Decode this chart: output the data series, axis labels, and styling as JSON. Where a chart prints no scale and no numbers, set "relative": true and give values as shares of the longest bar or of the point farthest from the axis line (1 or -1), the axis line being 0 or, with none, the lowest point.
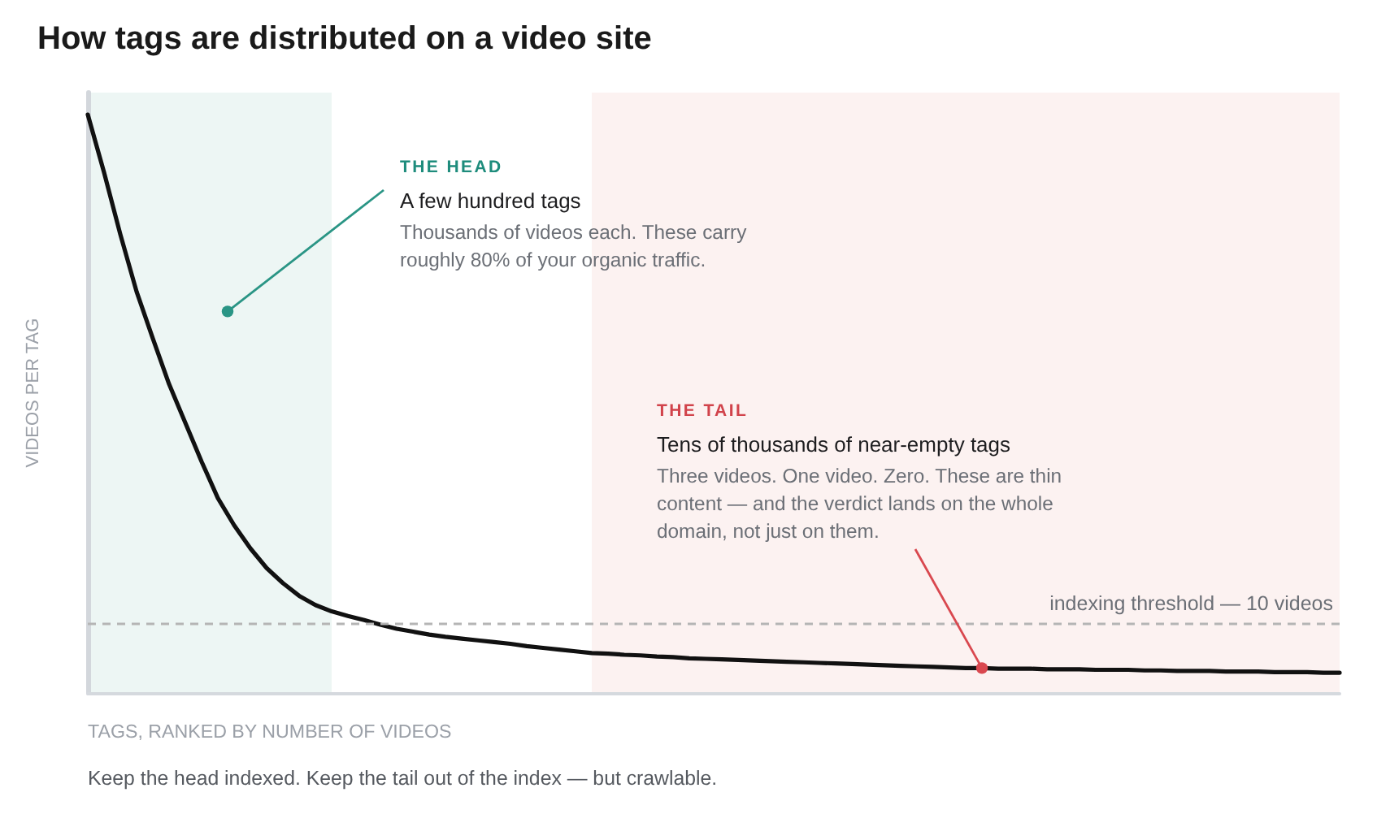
{
  "chart_data": {
    "type": "line",
    "title": "How tags are distributed on a video site",
    "xlabel": "TAGS, RANKED BY NUMBER OF VIDEOS",
    "ylabel": "VIDEOS PER TAG",
    "relative": true,
    "color": "#111111",
    "line_style": "solid",
    "categories": [
      null,
      null,
      null,
      null,
      null,
      null,
      null,
      null,
      null,
      null,
      null,
      null,
      null,
      null,
      null,
      null,
      null,
      null,
      null,
      null,
      null,
      null,
      null,
      null,
      null,
      null,
      null,
      null,
      null,
      null,
      null,
      null,
      null,
      null,
      null,
      null,
      null,
      null,
      null,
      null,
      null,
      null,
      null,
      null,
      null,
      null,
      null,
      null,
      null,
      null,
      null,
      null,
      null,
      null,
      null,
      null,
      null,
      null,
      null,
      null,
      null,
      null,
      null,
      null,
      null,
      null,
      null,
      null,
      null,
      null,
      null,
      null,
      null,
      null,
      null,
      null,
      null,
      null
    ],
    "values": [
      1,
      0.9,
      0.793,
      0.694,
      0.613,
      0.534,
      0.467,
      0.4,
      0.337,
      0.29,
      0.25,
      0.216,
      0.19,
      0.168,
      0.152,
      0.141,
      0.133,
      0.126,
      0.118,
      0.111,
      0.106,
      0.101,
      0.097,
      0.094,
      0.091,
      0.088,
      0.085,
      0.081,
      0.078,
      0.075,
      0.072,
      0.069,
      0.068,
      0.066,
      0.065,
      0.063,
      0.062,
      0.06,
      0.059,
      0.058,
      0.057,
      0.056,
      0.055,
      0.054,
      0.053,
      0.052,
      0.051,
      0.05,
      0.049,
      0.048,
      0.047,
      0.046,
      0.045,
      0.044,
      0.043,
      0.043,
      0.042,
      0.042,
      0.042,
      0.041,
      0.041,
      0.041,
      0.04,
      0.04,
      0.04,
      0.039,
      0.039,
      0.038,
      0.038,
      0.038,
      0.037,
      0.037,
      0.037,
      0.036,
      0.036,
      0.036,
      0.035,
      0.035
    ],
    "ref_lines": [
      {
        "axis": "y",
        "value": 0.117,
        "label": "indexing threshold — 10 videos",
        "color": "#b5b5b5",
        "line_style": "dashed"
      }
    ],
    "annotations": [
      "THE HEAD",
      "A few hundred tags",
      "Thousands of videos each. These carry roughly 80% of your organic traffic.",
      "THE TAIL",
      "Tens of thousands of near-empty tags",
      "Three videos. One video. Zero. These are thin content — and the verdict lands on the whole domain, not just on them.",
      "Keep the head indexed. Keep the tail out of the index — but crawlable."
    ]
  }
}
